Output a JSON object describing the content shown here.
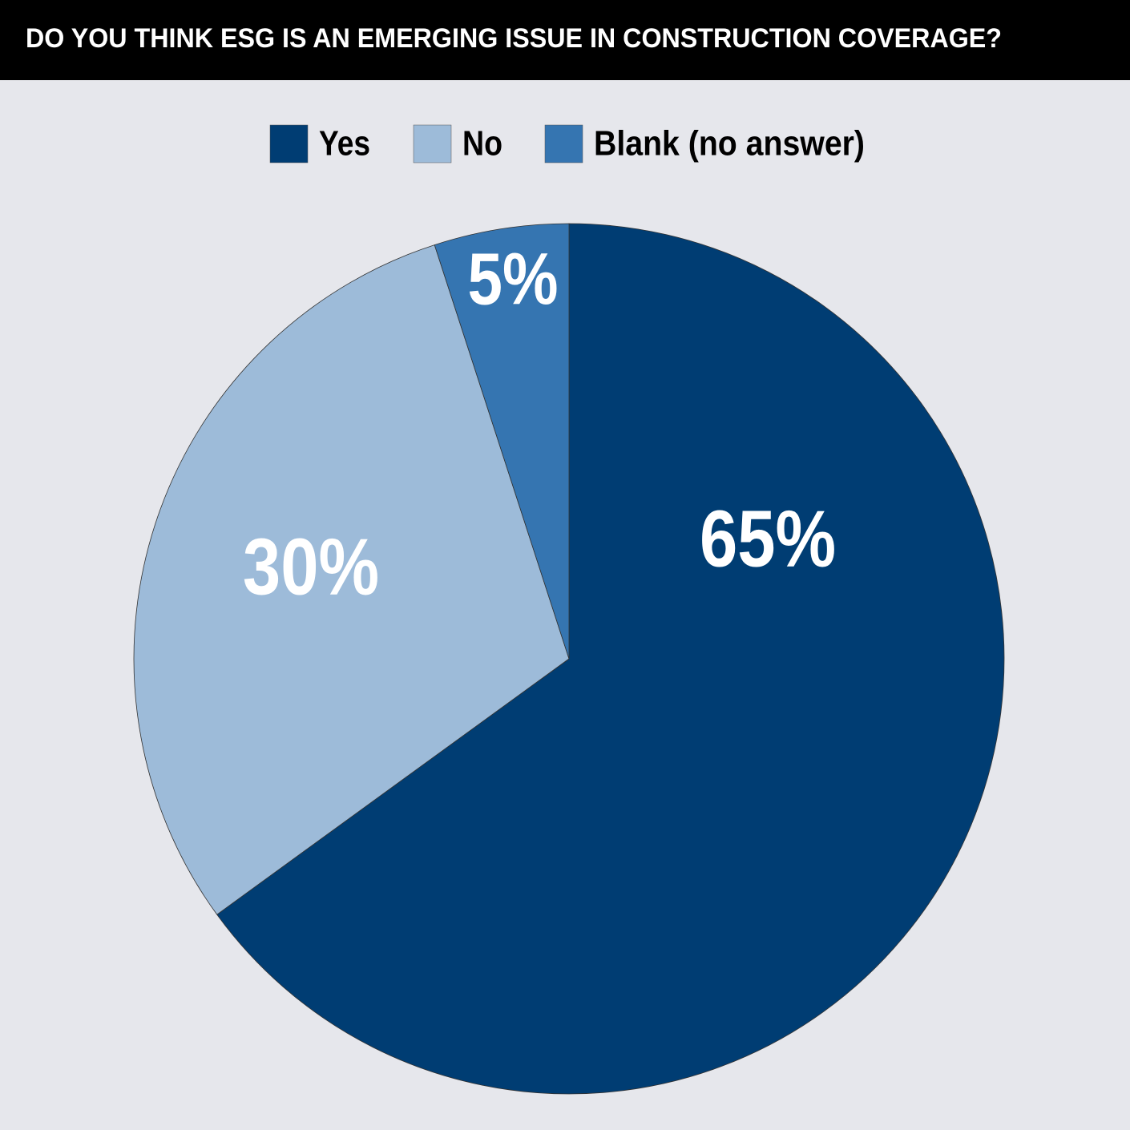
{
  "chart_data": {
    "type": "pie",
    "title": "DO YOU THINK ESG IS AN EMERGING ISSUE IN CONSTRUCTION COVERAGE?",
    "series": [
      {
        "name": "Yes",
        "color": "#003d73",
        "values": [
          65
        ],
        "value_labels": [
          "65%"
        ]
      },
      {
        "name": "No",
        "color": "#9dbbd9",
        "values": [
          30
        ],
        "value_labels": [
          "30%"
        ]
      },
      {
        "name": "Blank (no answer)",
        "color": "#3575b1",
        "values": [
          5
        ],
        "value_labels": [
          "5%"
        ]
      }
    ],
    "legend": "top"
  }
}
